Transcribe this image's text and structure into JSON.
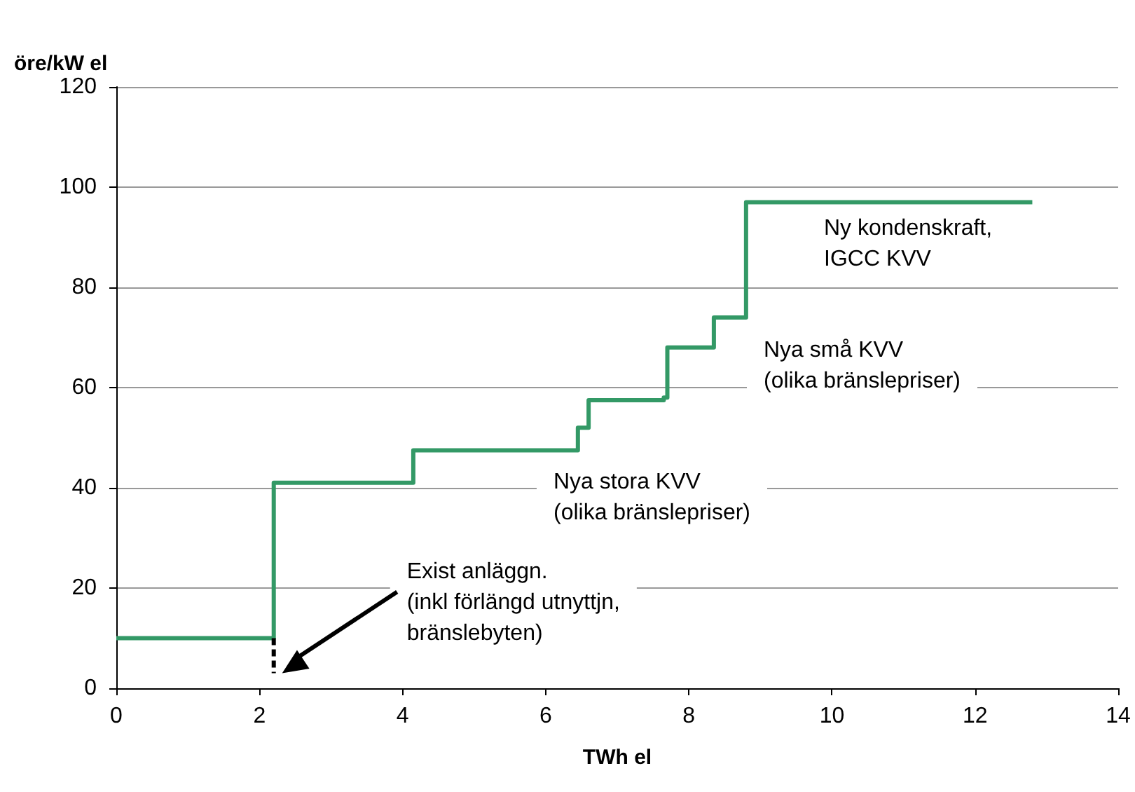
{
  "chart_data": {
    "type": "step",
    "ylabel": "öre/kW el",
    "xlabel": "TWh el",
    "x": [
      0,
      2.2,
      4.15,
      6.45,
      6.6,
      7.65,
      7.7,
      8.35,
      8.8,
      12.8
    ],
    "series": [
      {
        "color": "#339966",
        "values": [
          10,
          41,
          47.5,
          52,
          57.5,
          58,
          68,
          74,
          97,
          97
        ]
      }
    ],
    "xlim": [
      0,
      14
    ],
    "xticks": [
      0,
      2,
      4,
      6,
      8,
      10,
      12,
      14
    ],
    "ylim": [
      0,
      120
    ],
    "yticks": [
      0,
      20,
      40,
      60,
      80,
      100,
      120
    ],
    "grid": "y",
    "marker": "none",
    "line_style": "solid",
    "annotations": [
      "Ny kondenskraft,\nIGCC KVV",
      "Nya små KVV\n(olika bränslepriser)",
      "Nya stora KVV\n(olika bränslepriser)",
      "Exist anläggn.\n(inkl förlängd utnyttjn,\nbränslebyten)"
    ]
  }
}
